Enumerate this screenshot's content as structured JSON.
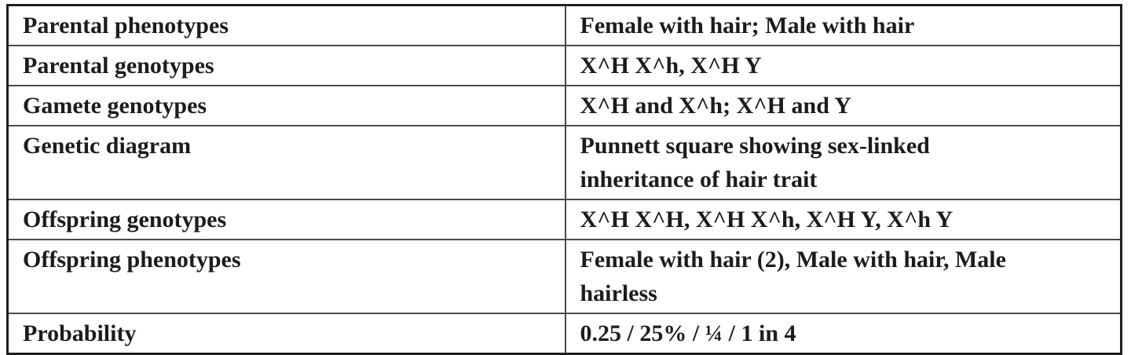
{
  "table": {
    "title": "genetics-cross-summary",
    "rows": [
      {
        "label": "Parental phenotypes",
        "value": "Female with hair; Male with hair"
      },
      {
        "label": "Parental genotypes",
        "value": "X^H X^h, X^H Y"
      },
      {
        "label": "Gamete genotypes",
        "value": "X^H and X^h; X^H and Y"
      },
      {
        "label": "Genetic diagram",
        "value": "Punnett square showing sex-linked\ninheritance of hair trait"
      },
      {
        "label": "Offspring genotypes",
        "value": "X^H X^H, X^H X^h, X^H Y, X^h Y"
      },
      {
        "label": "Offspring phenotypes",
        "value": "Female with hair (2), Male with hair, Male\nhairless"
      },
      {
        "label": "Probability",
        "value": "0.25 / 25% / ¼ / 1 in 4"
      }
    ],
    "colors": {
      "outer_border": "#1f1f1f",
      "inner_border": "#4a4a4a",
      "text": "#1c1c1c",
      "background": "#ffffff"
    }
  }
}
